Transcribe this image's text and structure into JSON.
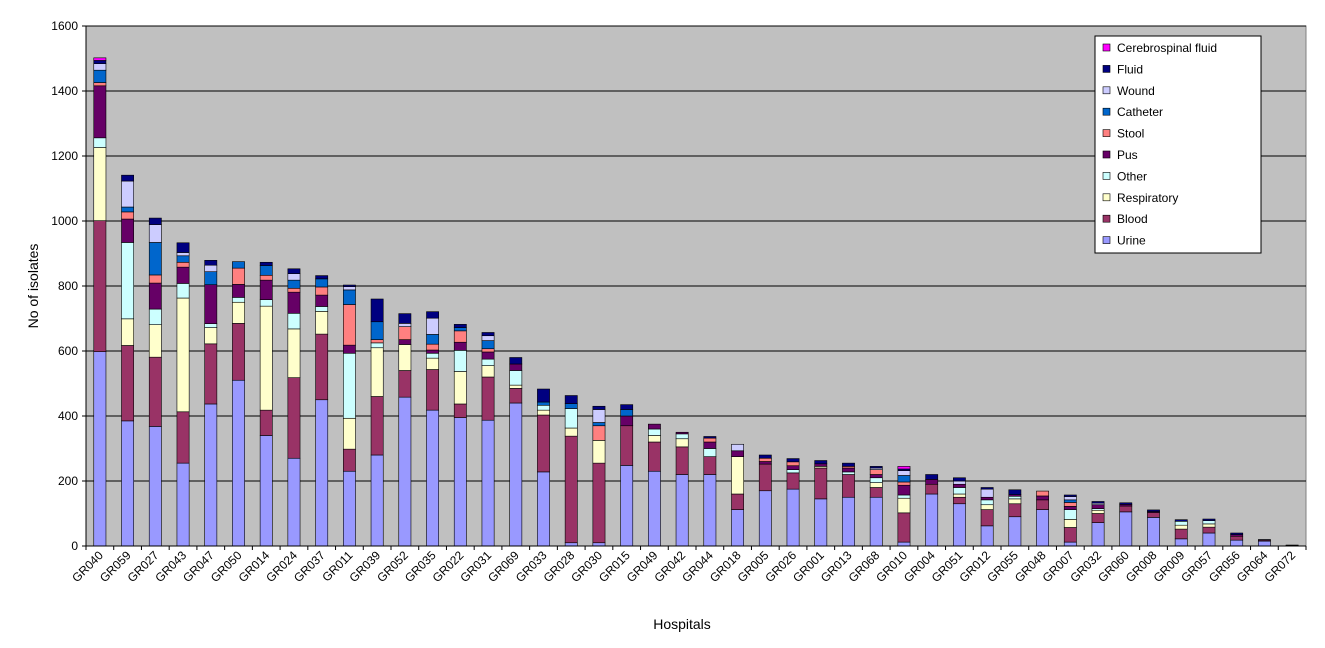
{
  "chart_data": {
    "type": "bar",
    "stacked": true,
    "title": "",
    "xlabel": "Hospitals",
    "ylabel": "No of isolates",
    "ylim": [
      0,
      1600
    ],
    "yticks": [
      0,
      200,
      400,
      600,
      800,
      1000,
      1200,
      1400,
      1600
    ],
    "grid": true,
    "legend_position": "top-right",
    "categories": [
      "GR040",
      "GR059",
      "GR027",
      "GR043",
      "GR047",
      "GR050",
      "GR014",
      "GR024",
      "GR037",
      "GR011",
      "GR039",
      "GR052",
      "GR035",
      "GR022",
      "GR031",
      "GR069",
      "GR033",
      "GR028",
      "GR030",
      "GR015",
      "GR049",
      "GR042",
      "GR044",
      "GR018",
      "GR005",
      "GR026",
      "GR001",
      "GR013",
      "GR068",
      "GR010",
      "GR004",
      "GR051",
      "GR012",
      "GR055",
      "GR048",
      "GR007",
      "GR032",
      "GR060",
      "GR008",
      "GR009",
      "GR057",
      "GR056",
      "GR064",
      "GR072"
    ],
    "series": [
      {
        "name": "Urine",
        "color": "#9999ff",
        "values": [
          598,
          385,
          368,
          255,
          437,
          510,
          340,
          270,
          450,
          230,
          280,
          458,
          418,
          395,
          387,
          440,
          228,
          10,
          10,
          248,
          230,
          220,
          220,
          112,
          170,
          175,
          145,
          150,
          150,
          12,
          160,
          130,
          62,
          90,
          112,
          12,
          72,
          105,
          88,
          22,
          40,
          18,
          15,
          2
        ]
      },
      {
        "name": "Blood",
        "color": "#993366",
        "values": [
          403,
          232,
          213,
          158,
          185,
          175,
          78,
          248,
          202,
          68,
          180,
          82,
          125,
          42,
          133,
          45,
          175,
          328,
          245,
          122,
          90,
          85,
          55,
          48,
          82,
          50,
          95,
          70,
          30,
          90,
          30,
          20,
          50,
          40,
          30,
          45,
          28,
          18,
          15,
          30,
          18,
          12,
          3,
          0
        ]
      },
      {
        "name": "Respiratory",
        "color": "#ffffcc",
        "values": [
          225,
          82,
          100,
          350,
          50,
          65,
          320,
          150,
          70,
          95,
          150,
          80,
          35,
          100,
          35,
          10,
          15,
          25,
          70,
          0,
          20,
          25,
          0,
          115,
          0,
          0,
          5,
          0,
          15,
          45,
          0,
          10,
          15,
          15,
          0,
          25,
          10,
          0,
          0,
          12,
          10,
          0,
          0,
          0
        ]
      },
      {
        "name": "Other",
        "color": "#ccffff",
        "values": [
          30,
          235,
          48,
          45,
          12,
          15,
          20,
          48,
          15,
          200,
          15,
          0,
          15,
          65,
          20,
          45,
          15,
          60,
          0,
          0,
          20,
          15,
          25,
          0,
          0,
          10,
          0,
          8,
          15,
          10,
          0,
          20,
          15,
          8,
          0,
          30,
          5,
          0,
          0,
          12,
          10,
          0,
          0,
          0
        ]
      },
      {
        "name": "Pus",
        "color": "#660066",
        "values": [
          160,
          72,
          80,
          50,
          120,
          40,
          60,
          65,
          35,
          25,
          0,
          15,
          10,
          25,
          22,
          20,
          0,
          0,
          0,
          30,
          15,
          5,
          20,
          18,
          8,
          12,
          8,
          12,
          10,
          30,
          15,
          10,
          8,
          5,
          12,
          10,
          12,
          5,
          3,
          0,
          0,
          5,
          0,
          0
        ]
      },
      {
        "name": "Stool",
        "color": "#ff8080",
        "values": [
          10,
          22,
          25,
          15,
          0,
          50,
          15,
          12,
          25,
          125,
          10,
          40,
          18,
          35,
          10,
          0,
          0,
          0,
          45,
          0,
          0,
          0,
          12,
          0,
          10,
          12,
          0,
          5,
          15,
          10,
          0,
          0,
          0,
          0,
          15,
          12,
          0,
          0,
          0,
          0,
          0,
          0,
          0,
          0
        ]
      },
      {
        "name": "Catheter",
        "color": "#0066cc",
        "values": [
          38,
          15,
          100,
          20,
          40,
          20,
          30,
          25,
          25,
          45,
          55,
          0,
          30,
          10,
          25,
          0,
          10,
          15,
          10,
          20,
          0,
          0,
          0,
          0,
          0,
          0,
          0,
          0,
          0,
          20,
          0,
          0,
          0,
          0,
          0,
          8,
          0,
          0,
          0,
          0,
          0,
          0,
          0,
          0
        ]
      },
      {
        "name": "Wound",
        "color": "#ccccff",
        "values": [
          20,
          80,
          55,
          10,
          20,
          0,
          0,
          20,
          0,
          10,
          0,
          10,
          50,
          0,
          15,
          0,
          0,
          0,
          40,
          0,
          0,
          0,
          0,
          20,
          0,
          0,
          0,
          0,
          5,
          15,
          0,
          10,
          25,
          0,
          0,
          10,
          5,
          0,
          0,
          0,
          0,
          0,
          0,
          0
        ]
      },
      {
        "name": "Fluid",
        "color": "#000080",
        "values": [
          10,
          18,
          20,
          30,
          15,
          0,
          10,
          15,
          10,
          5,
          70,
          30,
          20,
          10,
          10,
          20,
          40,
          25,
          10,
          15,
          0,
          0,
          5,
          0,
          10,
          10,
          10,
          10,
          5,
          5,
          15,
          10,
          5,
          15,
          0,
          5,
          5,
          5,
          5,
          5,
          5,
          5,
          2,
          1
        ]
      },
      {
        "name": "Cerebrospinal fluid",
        "color": "#ff00ff",
        "values": [
          8,
          0,
          0,
          0,
          0,
          0,
          0,
          0,
          0,
          0,
          0,
          0,
          0,
          0,
          0,
          0,
          0,
          0,
          0,
          0,
          0,
          0,
          0,
          0,
          0,
          0,
          0,
          0,
          0,
          8,
          0,
          0,
          0,
          0,
          0,
          0,
          0,
          0,
          0,
          0,
          0,
          0,
          0,
          0
        ]
      }
    ],
    "legend_order": [
      "Cerebrospinal fluid",
      "Fluid",
      "Wound",
      "Catheter",
      "Stool",
      "Pus",
      "Other",
      "Respiratory",
      "Blood",
      "Urine"
    ]
  },
  "style": {
    "plot_background": "#c0c0c0",
    "gridline_color": "#000000",
    "bar_edge_color": "#000000",
    "page_background": "#ffffff"
  }
}
